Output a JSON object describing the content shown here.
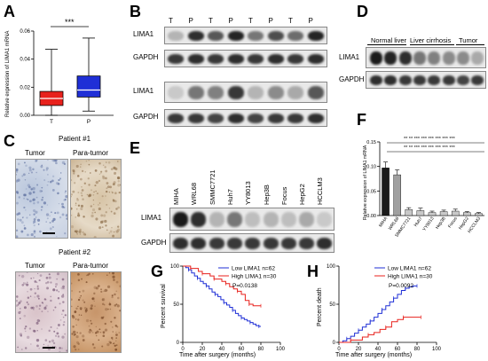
{
  "panels": {
    "A": "A",
    "B": "B",
    "C": "C",
    "D": "D",
    "E": "E",
    "F": "F",
    "G": "G",
    "H": "H"
  },
  "panel_a": {
    "ylabel": "Relative expression of LIMA1 mRNA",
    "sig": "***",
    "chart_data": {
      "type": "box",
      "categories": [
        "T",
        "P"
      ],
      "ylim": [
        0,
        0.06
      ],
      "yticks": [
        "0.00",
        "0.02",
        "0.04",
        "0.06"
      ],
      "boxes": [
        {
          "category": "T",
          "min": 0.0,
          "q1": 0.007,
          "median": 0.012,
          "q3": 0.017,
          "max": 0.047,
          "color": "#e8211c"
        },
        {
          "category": "P",
          "min": 0.003,
          "q1": 0.013,
          "median": 0.018,
          "q3": 0.028,
          "max": 0.055,
          "color": "#1f2fd6"
        }
      ]
    }
  },
  "panel_b": {
    "lane_labels": [
      "T",
      "P",
      "T",
      "P",
      "T",
      "P",
      "T",
      "P"
    ],
    "rows": [
      {
        "label": "LIMA1"
      },
      {
        "label": "GAPDH"
      },
      {
        "label": "LIMA1"
      },
      {
        "label": "GAPDH"
      }
    ]
  },
  "panel_c": {
    "patients": [
      {
        "title": "Patient #1",
        "tumor": "Tumor",
        "para": "Para-tumor"
      },
      {
        "title": "Patient #2",
        "tumor": "Tumor",
        "para": "Para-tumor"
      }
    ]
  },
  "panel_d": {
    "groups": [
      "Normal liver",
      "Liver cirrhosis",
      "Tumor"
    ],
    "rows": [
      "LIMA1",
      "GAPDH"
    ]
  },
  "panel_e": {
    "lanes": [
      "MIHA",
      "WRL68",
      "SMMC7721",
      "Huh7",
      "YY8013",
      "Hep3B",
      "Focus",
      "HepG2",
      "HCCLM3"
    ],
    "rows": [
      "LIMA1",
      "GAPDH"
    ]
  },
  "panel_f": {
    "ylabel": "Relative expression of LIMA1 mRNA",
    "sig_row1": "** ** *** *** *** *** *** ***",
    "sig_row2": "** ** *** *** *** *** *** ***",
    "chart_data": {
      "type": "bar",
      "categories": [
        "MIHA",
        "WRL68",
        "SMMC7721",
        "Huh7",
        "YY8013",
        "Hep3B",
        "Focus",
        "HepG2",
        "HCCLM3"
      ],
      "values": [
        0.097,
        0.083,
        0.012,
        0.01,
        0.006,
        0.008,
        0.009,
        0.006,
        0.004
      ],
      "errors": [
        0.012,
        0.01,
        0.004,
        0.005,
        0.003,
        0.003,
        0.004,
        0.002,
        0.002
      ],
      "ylim": [
        0,
        0.15
      ],
      "yticks": [
        "0.00",
        "0.05",
        "0.10",
        "0.15"
      ]
    }
  },
  "panel_g": {
    "ylabel": "Percent survival",
    "xlabel": "Time after surgery (months)",
    "legend": [
      {
        "label": "Low LIMA1 n=62",
        "color": "#1f2fd6"
      },
      {
        "label": "High LIMA1 n=30",
        "color": "#e8211c"
      }
    ],
    "pvalue": "P=0.0138",
    "chart_data": {
      "type": "line",
      "xlim": [
        0,
        100
      ],
      "ylim": [
        0,
        100
      ],
      "xticks": [
        "0",
        "20",
        "40",
        "60",
        "80",
        "100"
      ],
      "yticks": [
        "0",
        "50",
        "100"
      ],
      "series": [
        {
          "name": "Low LIMA1 n=62",
          "x": [
            0,
            3,
            6,
            9,
            12,
            15,
            18,
            21,
            24,
            27,
            30,
            33,
            36,
            39,
            42,
            45,
            48,
            51,
            54,
            57,
            60,
            63,
            66,
            69,
            72,
            75,
            78,
            80
          ],
          "y": [
            100,
            98,
            95,
            91,
            87,
            84,
            80,
            77,
            74,
            70,
            66,
            63,
            60,
            56,
            52,
            49,
            46,
            42,
            38,
            35,
            32,
            30,
            28,
            26,
            24,
            22,
            21,
            21
          ]
        },
        {
          "name": "High LIMA1 n=30",
          "x": [
            0,
            4,
            8,
            12,
            16,
            20,
            24,
            28,
            32,
            36,
            40,
            44,
            48,
            52,
            56,
            60,
            64,
            68,
            72,
            76,
            80
          ],
          "y": [
            100,
            100,
            97,
            97,
            93,
            90,
            90,
            87,
            83,
            83,
            80,
            77,
            73,
            70,
            67,
            63,
            55,
            50,
            48,
            48,
            48
          ]
        }
      ]
    }
  },
  "panel_h": {
    "ylabel": "Percent death",
    "xlabel": "Time after surgery (months)",
    "legend": [
      {
        "label": "Low LIMA1 n=62",
        "color": "#1f2fd6"
      },
      {
        "label": "High LIMA1 n=30",
        "color": "#e8211c"
      }
    ],
    "pvalue": "P=0.0092",
    "chart_data": {
      "type": "line",
      "xlim": [
        0,
        100
      ],
      "ylim": [
        0,
        100
      ],
      "xticks": [
        "0",
        "20",
        "40",
        "60",
        "80",
        "100"
      ],
      "yticks": [
        "0",
        "50",
        "100"
      ],
      "series": [
        {
          "name": "Low LIMA1 n=62",
          "x": [
            0,
            4,
            8,
            12,
            16,
            20,
            24,
            28,
            32,
            36,
            40,
            44,
            48,
            52,
            56,
            60,
            64,
            68,
            72,
            76,
            80
          ],
          "y": [
            0,
            2,
            5,
            8,
            12,
            16,
            20,
            24,
            28,
            33,
            38,
            43,
            48,
            53,
            58,
            63,
            68,
            71,
            73,
            74,
            74
          ]
        },
        {
          "name": "High LIMA1 n=30",
          "x": [
            0,
            6,
            12,
            18,
            24,
            30,
            36,
            42,
            48,
            54,
            60,
            66,
            72,
            78,
            84
          ],
          "y": [
            0,
            0,
            3,
            3,
            7,
            10,
            13,
            17,
            20,
            27,
            30,
            33,
            33,
            33,
            33
          ]
        }
      ]
    }
  }
}
